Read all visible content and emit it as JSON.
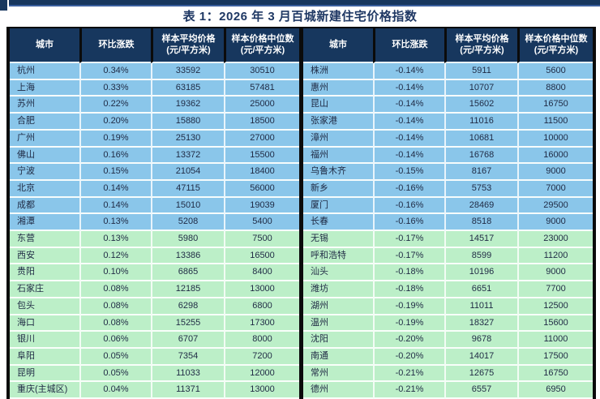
{
  "title": "表 1：2026 年 3 月百城新建住宅价格指数",
  "columns": [
    {
      "label": "城市",
      "sub": ""
    },
    {
      "label": "环比涨跌",
      "sub": ""
    },
    {
      "label": "样本平均价格",
      "sub": "(元/平方米)"
    },
    {
      "label": "样本价格中位数",
      "sub": "(元/平方米)"
    }
  ],
  "units": "元/平方米",
  "colors": {
    "header_bg": "#17375E",
    "row_blue": "#8AC6EA",
    "row_green": "#BCEFC8",
    "title_color": "#1F3864",
    "outer_border": "#0b0b0b"
  },
  "row_group_split": 10,
  "tables": [
    {
      "name": "top-gainers",
      "rows": [
        [
          "杭州",
          "0.34%",
          "33592",
          "30510"
        ],
        [
          "上海",
          "0.33%",
          "63185",
          "57481"
        ],
        [
          "苏州",
          "0.22%",
          "19362",
          "25000"
        ],
        [
          "合肥",
          "0.20%",
          "15880",
          "18500"
        ],
        [
          "广州",
          "0.19%",
          "25130",
          "27000"
        ],
        [
          "佛山",
          "0.16%",
          "13372",
          "15500"
        ],
        [
          "宁波",
          "0.15%",
          "21054",
          "18400"
        ],
        [
          "北京",
          "0.14%",
          "47115",
          "56000"
        ],
        [
          "成都",
          "0.14%",
          "15010",
          "19039"
        ],
        [
          "湘潭",
          "0.13%",
          "5208",
          "5400"
        ],
        [
          "东营",
          "0.13%",
          "5980",
          "7500"
        ],
        [
          "西安",
          "0.12%",
          "13386",
          "16500"
        ],
        [
          "贵阳",
          "0.10%",
          "6865",
          "8400"
        ],
        [
          "石家庄",
          "0.08%",
          "12185",
          "13000"
        ],
        [
          "包头",
          "0.08%",
          "6298",
          "6800"
        ],
        [
          "海口",
          "0.08%",
          "15255",
          "17300"
        ],
        [
          "银川",
          "0.06%",
          "6707",
          "8000"
        ],
        [
          "阜阳",
          "0.05%",
          "7354",
          "7200"
        ],
        [
          "昆明",
          "0.05%",
          "11033",
          "12000"
        ],
        [
          "重庆(主城区)",
          "0.04%",
          "11371",
          "13000"
        ]
      ]
    },
    {
      "name": "top-decliners",
      "rows": [
        [
          "株洲",
          "-0.14%",
          "5911",
          "5600"
        ],
        [
          "惠州",
          "-0.14%",
          "10707",
          "8800"
        ],
        [
          "昆山",
          "-0.14%",
          "15602",
          "16750"
        ],
        [
          "张家港",
          "-0.14%",
          "11016",
          "11500"
        ],
        [
          "漳州",
          "-0.14%",
          "10681",
          "10000"
        ],
        [
          "福州",
          "-0.14%",
          "16768",
          "16000"
        ],
        [
          "乌鲁木齐",
          "-0.15%",
          "8167",
          "9000"
        ],
        [
          "新乡",
          "-0.16%",
          "5753",
          "7000"
        ],
        [
          "厦门",
          "-0.16%",
          "28469",
          "29500"
        ],
        [
          "长春",
          "-0.16%",
          "8518",
          "9000"
        ],
        [
          "无锡",
          "-0.17%",
          "14517",
          "23000"
        ],
        [
          "呼和浩特",
          "-0.17%",
          "8599",
          "11200"
        ],
        [
          "汕头",
          "-0.18%",
          "10196",
          "9000"
        ],
        [
          "潍坊",
          "-0.18%",
          "6651",
          "7700"
        ],
        [
          "湖州",
          "-0.19%",
          "11011",
          "12500"
        ],
        [
          "温州",
          "-0.19%",
          "18327",
          "15600"
        ],
        [
          "沈阳",
          "-0.20%",
          "9678",
          "11000"
        ],
        [
          "南通",
          "-0.20%",
          "14017",
          "17500"
        ],
        [
          "常州",
          "-0.21%",
          "12675",
          "16750"
        ],
        [
          "德州",
          "-0.21%",
          "6557",
          "6950"
        ]
      ]
    }
  ]
}
